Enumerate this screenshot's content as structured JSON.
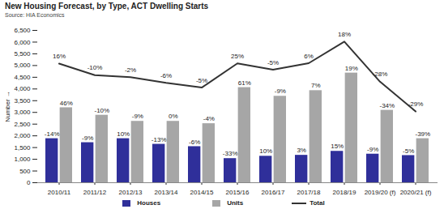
{
  "chart_data": {
    "type": "bar",
    "title": "New Housing Forecast, by Type, ACT Dwelling Starts",
    "subtitle": "Source: HIA Economics",
    "y_label": "Number",
    "categories": [
      "2010/11",
      "2011/12",
      "2012/13",
      "2013/14",
      "2014/15",
      "2015/16",
      "2016/17",
      "2017/18",
      "2018/19",
      "2019/20 (f)",
      "2020/21 (f)"
    ],
    "series": [
      {
        "name": "Houses",
        "type": "bar",
        "color": "#2f2f9a",
        "values": [
          1880,
          1710,
          1880,
          1640,
          1540,
          1030,
          1130,
          1170,
          1340,
          1220,
          1160
        ],
        "change_labels": [
          "-14%",
          "-9%",
          "10%",
          "-13%",
          "-6%",
          "-33%",
          "10%",
          "3%",
          "15%",
          "-9%",
          "-5%"
        ]
      },
      {
        "name": "Units",
        "type": "bar",
        "color": "#a6a6a6",
        "values": [
          3200,
          2880,
          2620,
          2620,
          2520,
          4060,
          3690,
          3930,
          4680,
          3090,
          1880
        ],
        "change_labels": [
          "46%",
          "-10%",
          "-9%",
          "0%",
          "-4%",
          "61%",
          "-9%",
          "7%",
          "19%",
          "-34%",
          "-39%"
        ]
      },
      {
        "name": "Total",
        "type": "line",
        "color": "#333333",
        "values": [
          5080,
          4590,
          4500,
          4260,
          4060,
          5090,
          4820,
          5100,
          6020,
          4310,
          3040
        ],
        "change_labels": [
          "16%",
          "-10%",
          "-2%",
          "-6%",
          "-5%",
          "25%",
          "-5%",
          "6%",
          "18%",
          "-28%",
          "-29%"
        ]
      }
    ],
    "ylim": [
      0,
      6500
    ],
    "yticks": [
      0,
      500,
      {
        "value": 1000,
        "label": "1,000"
      },
      {
        "value": 1500,
        "label": "1,500"
      },
      {
        "value": 2000,
        "label": "2,000"
      },
      {
        "value": 2500,
        "label": "2,500"
      },
      {
        "value": 3000,
        "label": "3,000"
      },
      {
        "value": 3500,
        "label": "3,500"
      },
      {
        "value": 4000,
        "label": "4,000"
      },
      {
        "value": 4500,
        "label": "4,500"
      },
      {
        "value": 5000,
        "label": "5,000"
      },
      {
        "value": 5500,
        "label": "5,500"
      },
      {
        "value": 6000,
        "label": "6,000"
      },
      {
        "value": 6500,
        "label": "6,500"
      }
    ],
    "grid": false,
    "legend": "bottom"
  }
}
